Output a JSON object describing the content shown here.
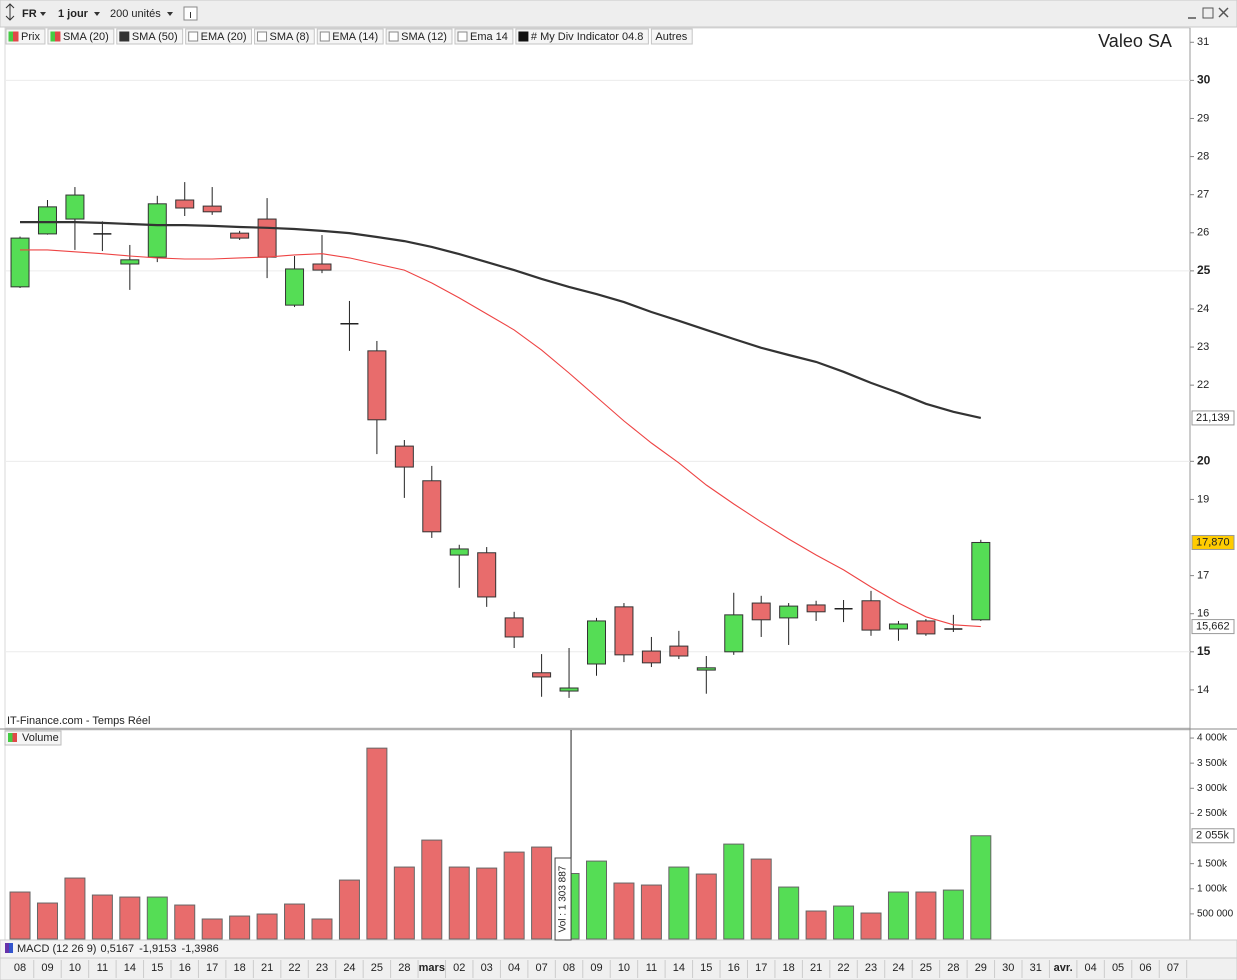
{
  "toolbar": {
    "market": "FR",
    "period": "1 jour",
    "units": "200 unités"
  },
  "chart_data": [
    {
      "type": "candlestick",
      "title": "Valeo SA",
      "source": "IT-Finance.com - Temps Réel",
      "price_name": "Prix",
      "price_swatch": [
        "#44cc44",
        "#e04848"
      ],
      "indicators": [
        {
          "name": "EMA (20)",
          "swatch": [
            "#ffffff"
          ]
        },
        {
          "name": "SMA (8)",
          "swatch": [
            "#ffffff"
          ]
        },
        {
          "name": "EMA (14)",
          "swatch": [
            "#ffffff"
          ]
        },
        {
          "name": "SMA (12)",
          "swatch": [
            "#ffffff"
          ]
        },
        {
          "name": "Ema 14",
          "swatch": [
            "#ffffff"
          ]
        },
        {
          "name": "# My Div Indicator 04.8",
          "swatch": [
            "#111111"
          ]
        },
        {
          "name": "Autres",
          "swatch": []
        }
      ],
      "categories": [
        "08",
        "09",
        "10",
        "11",
        "14",
        "15",
        "16",
        "17",
        "18",
        "21",
        "22",
        "23",
        "24",
        "25",
        "28",
        "mars",
        "02",
        "03",
        "04",
        "07",
        "08",
        "09",
        "10",
        "11",
        "14",
        "15",
        "16",
        "17",
        "18",
        "21",
        "22",
        "23",
        "24",
        "25",
        "28",
        "29",
        "30",
        "31",
        "avr.",
        "04",
        "05",
        "06",
        "07"
      ],
      "open": [
        24.58,
        25.97,
        26.36,
        25.97,
        25.18,
        25.36,
        26.86,
        26.7,
        25.99,
        26.36,
        24.1,
        25.18,
        23.61,
        22.9,
        20.4,
        19.49,
        17.54,
        17.6,
        15.89,
        14.45,
        13.97,
        14.68,
        16.18,
        15.02,
        15.15,
        14.52,
        15.0,
        16.28,
        15.89,
        16.23,
        16.13,
        16.34,
        15.6,
        15.81,
        15.6,
        15.84,
        null,
        null,
        null,
        null,
        null,
        null,
        null
      ],
      "high": [
        25.9,
        26.86,
        27.2,
        26.3,
        25.68,
        26.97,
        27.33,
        27.2,
        26.05,
        26.91,
        25.39,
        25.94,
        24.21,
        23.16,
        20.56,
        19.88,
        17.81,
        17.75,
        16.05,
        14.94,
        15.1,
        15.89,
        16.28,
        15.39,
        15.55,
        14.89,
        16.55,
        16.47,
        16.28,
        16.34,
        16.36,
        16.6,
        15.81,
        15.86,
        15.97,
        17.94,
        null,
        null,
        null,
        null,
        null,
        null,
        null
      ],
      "low": [
        24.55,
        25.95,
        25.55,
        25.52,
        24.5,
        25.23,
        26.44,
        26.47,
        25.81,
        24.81,
        24.05,
        24.94,
        22.9,
        20.19,
        19.04,
        17.99,
        16.68,
        16.18,
        15.1,
        13.82,
        13.79,
        14.37,
        14.73,
        14.6,
        14.81,
        13.9,
        14.92,
        15.39,
        15.18,
        15.81,
        15.78,
        15.42,
        15.29,
        15.42,
        15.52,
        15.81,
        null,
        null,
        null,
        null,
        null,
        null,
        null
      ],
      "close": [
        25.86,
        26.68,
        26.99,
        25.97,
        25.29,
        26.76,
        26.65,
        26.55,
        25.86,
        25.36,
        25.05,
        25.02,
        23.61,
        21.09,
        19.85,
        18.15,
        17.7,
        16.44,
        15.39,
        14.34,
        14.05,
        15.81,
        14.92,
        14.71,
        14.89,
        14.58,
        15.97,
        15.84,
        16.2,
        16.05,
        16.13,
        15.57,
        15.73,
        15.47,
        15.6,
        17.87,
        null,
        null,
        null,
        null,
        null,
        null,
        null
      ],
      "close_label": "17,870",
      "up_color": "#55dd55",
      "down_color": "#e86c6c",
      "series": [
        {
          "name": "SMA (20)",
          "color": "#ee4444",
          "swatch": [
            "#44cc44",
            "#e04848"
          ],
          "last_label": "15,662",
          "values": [
            25.55,
            25.55,
            25.5,
            25.45,
            25.39,
            25.34,
            25.31,
            25.31,
            25.34,
            25.36,
            25.42,
            25.45,
            25.34,
            25.18,
            25.02,
            24.68,
            24.29,
            23.87,
            23.45,
            22.92,
            22.32,
            21.69,
            21.06,
            20.48,
            19.96,
            19.38,
            18.88,
            18.41,
            17.96,
            17.54,
            17.15,
            16.7,
            16.28,
            15.92,
            15.71,
            15.662,
            null,
            null,
            null,
            null,
            null,
            null,
            null
          ]
        },
        {
          "name": "SMA (50)",
          "color": "#333333",
          "swatch": [
            "#333333"
          ],
          "last_label": "21,139",
          "values": [
            26.28,
            26.28,
            26.28,
            26.26,
            26.23,
            26.2,
            26.2,
            26.18,
            26.15,
            26.13,
            26.1,
            26.05,
            25.99,
            25.89,
            25.78,
            25.63,
            25.44,
            25.23,
            25.02,
            24.79,
            24.58,
            24.39,
            24.18,
            23.92,
            23.69,
            23.45,
            23.21,
            22.98,
            22.79,
            22.61,
            22.35,
            22.06,
            21.8,
            21.51,
            21.3,
            21.139,
            null,
            null,
            null,
            null,
            null,
            null,
            null
          ]
        }
      ],
      "ylim": [
        13.0,
        31.375
      ],
      "yticks": [
        31,
        30,
        29,
        28,
        27,
        26,
        25,
        24,
        23,
        22,
        20,
        19,
        17,
        16,
        15,
        14
      ],
      "grid": true
    },
    {
      "type": "bar",
      "title": "Volume",
      "swatch": [
        "#44cc44",
        "#e04848"
      ],
      "values": [
        935000,
        716000,
        1213000,
        875000,
        835000,
        835000,
        676000,
        398000,
        457000,
        497000,
        696000,
        398000,
        1173000,
        3799000,
        1432000,
        1969000,
        1432000,
        1412000,
        1730000,
        1830000,
        1303887,
        1551000,
        1114000,
        1074000,
        1432000,
        1293000,
        1889000,
        1591000,
        1034000,
        557000,
        656000,
        517000,
        935000,
        935000,
        974000,
        2055000
      ],
      "value_labels": [
        null,
        null,
        null,
        null,
        null,
        null,
        null,
        null,
        null,
        null,
        null,
        null,
        null,
        null,
        null,
        null,
        null,
        null,
        null,
        null,
        "Vol : 1 303 887",
        null,
        null,
        null,
        null,
        null,
        null,
        null,
        null,
        null,
        null,
        null,
        null,
        null,
        null,
        null
      ],
      "last_label": "2 055k",
      "colors": [
        "#e86c6c",
        "#e86c6c",
        "#e86c6c",
        "#e86c6c",
        "#e86c6c",
        "#55dd55",
        "#e86c6c",
        "#e86c6c",
        "#e86c6c",
        "#e86c6c",
        "#e86c6c",
        "#e86c6c",
        "#e86c6c",
        "#e86c6c",
        "#e86c6c",
        "#e86c6c",
        "#e86c6c",
        "#e86c6c",
        "#e86c6c",
        "#e86c6c",
        "#55dd55",
        "#55dd55",
        "#e86c6c",
        "#e86c6c",
        "#55dd55",
        "#e86c6c",
        "#55dd55",
        "#e86c6c",
        "#55dd55",
        "#e86c6c",
        "#55dd55",
        "#e86c6c",
        "#55dd55",
        "#e86c6c",
        "#55dd55",
        "#55dd55"
      ],
      "ylim": [
        0,
        4160000
      ],
      "yticks": [
        {
          "value": 4000000,
          "label": "4 000k"
        },
        {
          "value": 3500000,
          "label": "3 500k"
        },
        {
          "value": 3000000,
          "label": "3 000k"
        },
        {
          "value": 2500000,
          "label": "2 500k"
        },
        {
          "value": 1500000,
          "label": "1 500k"
        },
        {
          "value": 1000000,
          "label": "1 000k"
        },
        {
          "value": 500000,
          "label": "500 000"
        }
      ]
    }
  ],
  "macd": {
    "name": "MACD (12 26 9)",
    "values": [
      {
        "text": "0,5167",
        "color": "#33aa33"
      },
      {
        "text": "-1,9153",
        "color": "#dd3333"
      },
      {
        "text": "-1,3986",
        "color": "#3333bb"
      }
    ]
  }
}
